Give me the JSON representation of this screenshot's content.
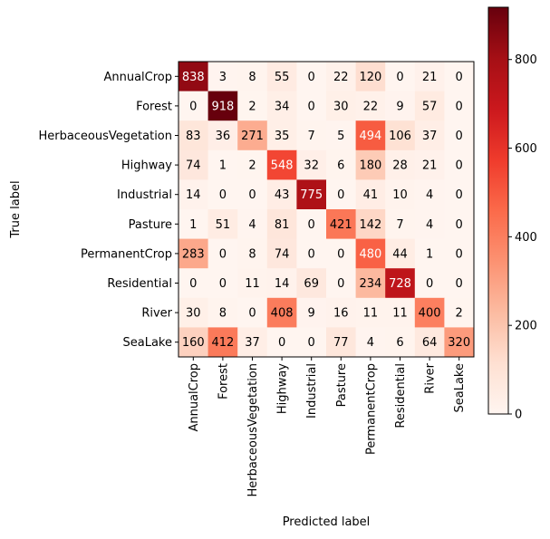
{
  "chart_data": {
    "type": "heatmap",
    "title": "",
    "xlabel": "Predicted label",
    "ylabel": "True label",
    "x_categories": [
      "AnnualCrop",
      "Forest",
      "HerbaceousVegetation",
      "Highway",
      "Industrial",
      "Pasture",
      "PermanentCrop",
      "Residential",
      "River",
      "SeaLake"
    ],
    "y_categories": [
      "AnnualCrop",
      "Forest",
      "HerbaceousVegetation",
      "Highway",
      "Industrial",
      "Pasture",
      "PermanentCrop",
      "Residential",
      "River",
      "SeaLake"
    ],
    "values": [
      [
        838,
        3,
        8,
        55,
        0,
        22,
        120,
        0,
        21,
        0
      ],
      [
        0,
        918,
        2,
        34,
        0,
        30,
        22,
        9,
        57,
        0
      ],
      [
        83,
        36,
        271,
        35,
        7,
        5,
        494,
        106,
        37,
        0
      ],
      [
        74,
        1,
        2,
        548,
        32,
        6,
        180,
        28,
        21,
        0
      ],
      [
        14,
        0,
        0,
        43,
        775,
        0,
        41,
        10,
        4,
        0
      ],
      [
        1,
        51,
        4,
        81,
        0,
        421,
        142,
        7,
        4,
        0
      ],
      [
        283,
        0,
        8,
        74,
        0,
        0,
        480,
        44,
        1,
        0
      ],
      [
        0,
        0,
        11,
        14,
        69,
        0,
        234,
        728,
        0,
        0
      ],
      [
        30,
        8,
        0,
        408,
        9,
        16,
        11,
        11,
        400,
        2
      ],
      [
        160,
        412,
        37,
        0,
        0,
        77,
        4,
        6,
        64,
        320
      ]
    ],
    "colormap": "Reds",
    "colorbar": {
      "ticks": [
        0,
        200,
        400,
        600,
        800
      ],
      "range": [
        0,
        918
      ]
    },
    "grid": false
  }
}
